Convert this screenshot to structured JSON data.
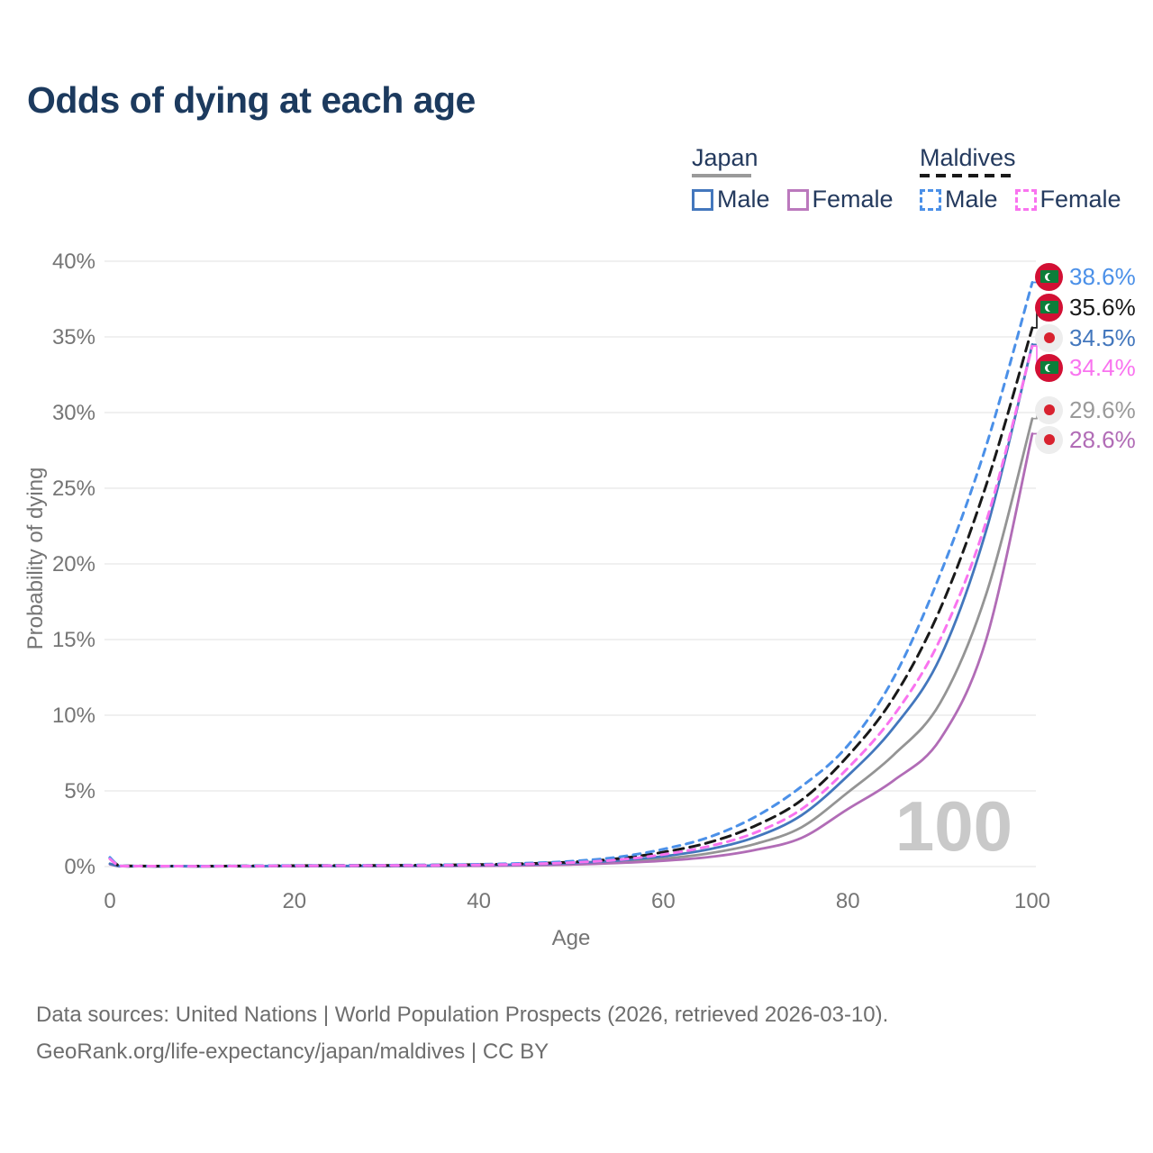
{
  "title": "Odds of dying at each age",
  "legend": {
    "japan": {
      "label": "Japan",
      "line_color": "#9a9a9a",
      "line_style": "solid",
      "male": {
        "label": "Male",
        "color": "#4377bd",
        "style": "solid"
      },
      "female": {
        "label": "Female",
        "color": "#bb79bd",
        "style": "solid"
      }
    },
    "maldives": {
      "label": "Maldives",
      "line_color": "#191919",
      "line_style": "dashed",
      "male": {
        "label": "Male",
        "color": "#4b90e8",
        "style": "dashed"
      },
      "female": {
        "label": "Female",
        "color": "#f973ef",
        "style": "dashed"
      }
    }
  },
  "chart_data": {
    "type": "line",
    "title": "Odds of dying at each age",
    "xlabel": "Age",
    "ylabel": "Probability of dying",
    "xlim": [
      0,
      100
    ],
    "ylim_pct": [
      0,
      40
    ],
    "grid": "horizontal",
    "watermark": "100",
    "xticks": [
      0,
      20,
      40,
      60,
      80,
      100
    ],
    "xtick_labels": [
      "0",
      "20",
      "40",
      "60",
      "80",
      "100"
    ],
    "yticks": [
      0,
      5,
      10,
      15,
      20,
      25,
      30,
      35,
      40
    ],
    "ytick_labels": [
      "0%",
      "5%",
      "10%",
      "15%",
      "20%",
      "25%",
      "30%",
      "35%",
      "40%"
    ],
    "x": [
      0,
      1,
      2,
      5,
      10,
      15,
      20,
      25,
      30,
      35,
      40,
      45,
      50,
      55,
      60,
      65,
      70,
      75,
      80,
      85,
      90,
      95,
      100
    ],
    "series": [
      {
        "key": "japan_both",
        "name": "Japan",
        "color": "#949494",
        "style": "solid",
        "values_pct": [
          0.17,
          0.02,
          0.02,
          0.01,
          0.01,
          0.02,
          0.03,
          0.03,
          0.04,
          0.05,
          0.07,
          0.11,
          0.18,
          0.31,
          0.52,
          0.88,
          1.5,
          2.6,
          4.9,
          7.4,
          10.8,
          18.0,
          29.6
        ]
      },
      {
        "key": "japan_female",
        "name": "Japan · Female",
        "color": "#b16cb6",
        "style": "solid",
        "values_pct": [
          0.15,
          0.02,
          0.01,
          0.01,
          0.01,
          0.01,
          0.02,
          0.03,
          0.03,
          0.04,
          0.05,
          0.08,
          0.13,
          0.23,
          0.38,
          0.63,
          1.1,
          1.9,
          3.8,
          5.7,
          8.4,
          15.0,
          28.6
        ]
      },
      {
        "key": "japan_male",
        "name": "Japan · Male",
        "color": "#4377bd",
        "style": "solid",
        "values_pct": [
          0.19,
          0.03,
          0.02,
          0.01,
          0.01,
          0.02,
          0.04,
          0.04,
          0.05,
          0.06,
          0.09,
          0.14,
          0.23,
          0.4,
          0.68,
          1.15,
          1.95,
          3.4,
          6.0,
          9.2,
          13.8,
          22.2,
          34.5
        ]
      },
      {
        "key": "maldives_both",
        "name": "Maldives",
        "color": "#191919",
        "style": "dashed",
        "values_pct": [
          0.55,
          0.05,
          0.04,
          0.03,
          0.03,
          0.04,
          0.06,
          0.07,
          0.08,
          0.1,
          0.13,
          0.19,
          0.3,
          0.52,
          0.95,
          1.6,
          2.7,
          4.4,
          7.3,
          11.2,
          17.0,
          25.2,
          35.6
        ]
      },
      {
        "key": "maldives_male",
        "name": "Maldives · Male",
        "color": "#4b90e8",
        "style": "dashed",
        "values_pct": [
          0.6,
          0.05,
          0.04,
          0.03,
          0.03,
          0.05,
          0.07,
          0.08,
          0.09,
          0.11,
          0.15,
          0.22,
          0.35,
          0.62,
          1.15,
          1.95,
          3.3,
          5.3,
          8.0,
          12.5,
          19.3,
          27.8,
          38.6
        ]
      },
      {
        "key": "maldives_female",
        "name": "Maldives · Female",
        "color": "#f973ef",
        "style": "dashed",
        "values_pct": [
          0.5,
          0.04,
          0.03,
          0.03,
          0.02,
          0.03,
          0.05,
          0.06,
          0.07,
          0.08,
          0.11,
          0.16,
          0.26,
          0.44,
          0.8,
          1.35,
          2.25,
          3.8,
          6.5,
          10.0,
          15.0,
          22.8,
          34.4
        ]
      }
    ]
  },
  "end_labels": [
    {
      "key": "maldives_male",
      "series": "Maldives · Male",
      "flag": "maldives",
      "value": "38.6%",
      "color": "#4b90e8"
    },
    {
      "key": "maldives_both",
      "series": "Maldives",
      "flag": "maldives",
      "value": "35.6%",
      "color": "#191919"
    },
    {
      "key": "japan_male",
      "series": "Japan · Male",
      "flag": "japan",
      "value": "34.5%",
      "color": "#4377bd"
    },
    {
      "key": "maldives_female",
      "series": "Maldives · Female",
      "flag": "maldives",
      "value": "34.4%",
      "color": "#f973ef"
    },
    {
      "key": "japan_both",
      "series": "Japan",
      "flag": "japan",
      "value": "29.6%",
      "color": "#9a9a9a"
    },
    {
      "key": "japan_female",
      "series": "Japan · Female",
      "flag": "japan",
      "value": "28.6%",
      "color": "#b16cb6"
    }
  ],
  "footer": {
    "line1": "Data sources: United Nations | World Population Prospects (2026, retrieved 2026-03-10).",
    "line2": "GeoRank.org/life-expectancy/japan/maldives | CC BY"
  }
}
